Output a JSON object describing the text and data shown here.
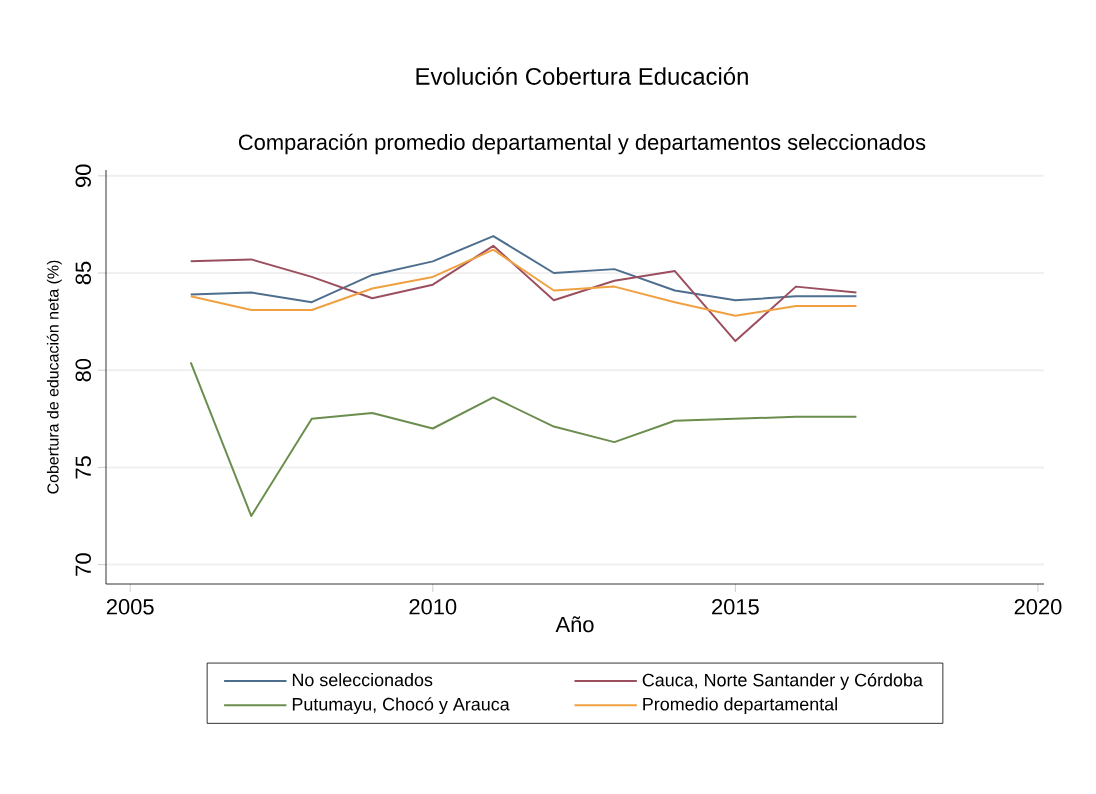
{
  "chart_data": {
    "type": "line",
    "title": "Evolución Cobertura Educación",
    "subtitle": "Comparación promedio departamental y departamentos seleccionados",
    "xlabel": "Año",
    "ylabel": "Cobertura de educación neta (%)",
    "x": [
      2006,
      2007,
      2008,
      2009,
      2010,
      2011,
      2012,
      2013,
      2014,
      2015,
      2016,
      2017
    ],
    "series": [
      {
        "name": "No seleccionados",
        "color": "#4e6e8e",
        "values": [
          83.9,
          84.0,
          83.5,
          84.9,
          85.6,
          86.9,
          85.0,
          85.2,
          84.1,
          83.6,
          83.8,
          83.8
        ]
      },
      {
        "name": "Cauca, Norte Santander y Córdoba",
        "color": "#9b4f5e",
        "values": [
          85.6,
          85.7,
          84.8,
          83.7,
          84.4,
          86.4,
          83.6,
          84.6,
          85.1,
          81.5,
          84.3,
          84.0
        ]
      },
      {
        "name": "Putumayu, Chocó y Arauca",
        "color": "#6b8e4e",
        "values": [
          80.4,
          72.5,
          77.5,
          77.8,
          77.0,
          78.6,
          77.1,
          76.3,
          77.4,
          77.5,
          77.6,
          77.6
        ]
      },
      {
        "name": "Promedio departamental",
        "color": "#f0a040",
        "values": [
          83.8,
          83.1,
          83.1,
          84.2,
          84.8,
          86.2,
          84.1,
          84.3,
          83.5,
          82.8,
          83.3,
          83.3
        ]
      }
    ],
    "xlim": [
      2004.6,
      2020.1
    ],
    "ylim": [
      69,
      90.3
    ],
    "xticks": [
      2005,
      2010,
      2015,
      2020
    ],
    "yticks": [
      70,
      75,
      80,
      85,
      90
    ],
    "grid": "y",
    "legend": "bottom",
    "marker": "none",
    "line_style": "solid"
  }
}
